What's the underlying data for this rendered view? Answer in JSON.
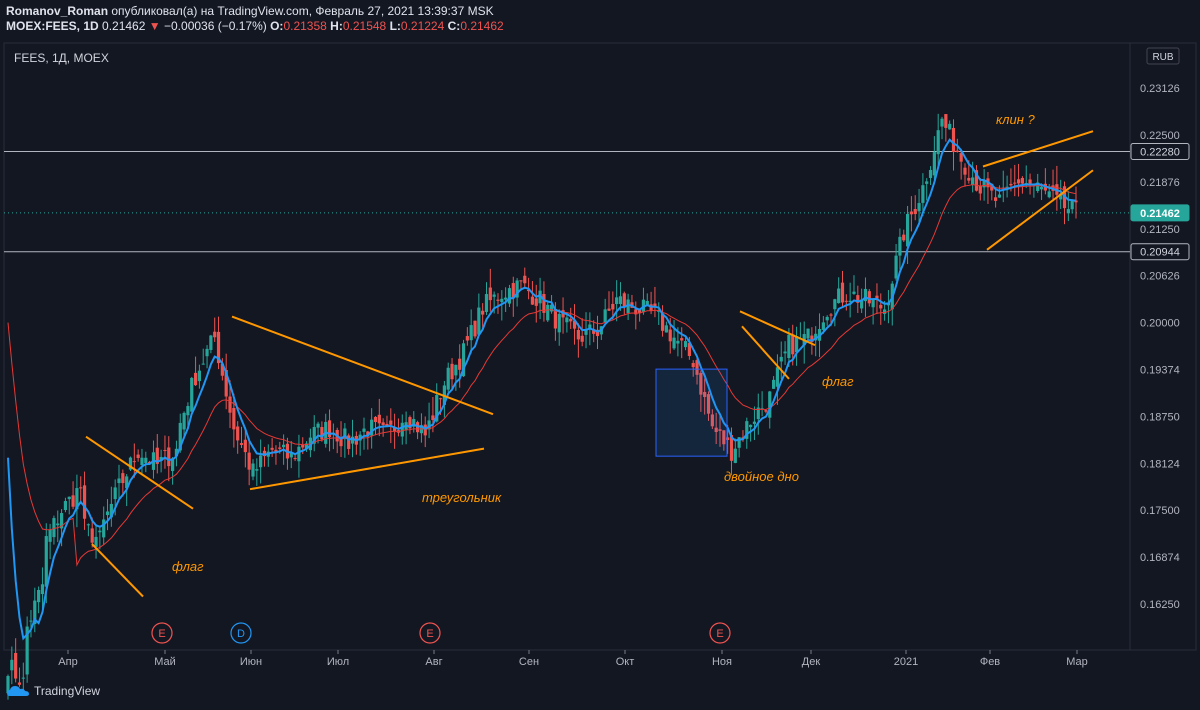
{
  "header": {
    "author": "Romanov_Roman",
    "published_text": "опубликовал(а) на TradingView.com, Февраль 27, 2021 13:39:37 MSK",
    "symbol": "MOEX:FEES, 1D",
    "last": "0.21462",
    "change": "−0.00036 (−0.17%)",
    "o_label": "O:",
    "o": "0.21358",
    "h_label": "H:",
    "h": "0.21548",
    "l_label": "L:",
    "l": "0.21224",
    "c_label": "C:",
    "c": "0.21462"
  },
  "chart_title": "FEES, 1Д, MOEX",
  "currency": "RUB",
  "footer_brand": "TradingView",
  "colors": {
    "background": "#131722",
    "up": "#26a69a",
    "down": "#ef5350",
    "ma_fast": "#2196f3",
    "ma_slow": "#e53935",
    "annotation": "#ff9800",
    "hline": "#b2b5be",
    "last_price": "#26a69a"
  },
  "chart_data": {
    "type": "candlestick",
    "y_ticks": [
      0.23126,
      0.225,
      0.21876,
      0.2125,
      0.20626,
      0.2,
      0.19374,
      0.1875,
      0.18124,
      0.175,
      0.16874,
      0.1625
    ],
    "ylim": [
      0.1575,
      0.2345
    ],
    "x_labels": [
      "Апр",
      "Май",
      "Июн",
      "Июл",
      "Авг",
      "Сен",
      "Окт",
      "Ноя",
      "Дек",
      "2021",
      "Фев",
      "Мар"
    ],
    "price_badges": [
      {
        "label": "0.22280",
        "value": 0.2228,
        "style": "hline"
      },
      {
        "label": "0.21462",
        "value": 0.21462,
        "style": "last"
      },
      {
        "label": "0.20944",
        "value": 0.20944,
        "style": "hline"
      }
    ],
    "horizontal_levels": [
      0.2228,
      0.20944
    ],
    "events": [
      {
        "label": "E",
        "color": "#ef5350"
      },
      {
        "label": "D",
        "color": "#2196f3"
      },
      {
        "label": "E",
        "color": "#ef5350"
      },
      {
        "label": "E",
        "color": "#ef5350"
      }
    ],
    "annotations": [
      {
        "text": "флаг"
      },
      {
        "text": "треугольник"
      },
      {
        "text": "двойное дно"
      },
      {
        "text": "флаг"
      },
      {
        "text": "клин ?"
      }
    ],
    "close_path": [
      [
        0.155,
        0.152
      ],
      [
        0.158,
        0.165
      ],
      [
        0.17,
        0.175
      ],
      [
        0.175,
        0.178
      ],
      [
        0.173,
        0.171
      ],
      [
        0.172,
        0.178
      ],
      [
        0.178,
        0.183
      ],
      [
        0.183,
        0.181
      ],
      [
        0.181,
        0.183
      ],
      [
        0.185,
        0.193
      ],
      [
        0.193,
        0.198
      ],
      [
        0.198,
        0.186
      ],
      [
        0.186,
        0.18
      ],
      [
        0.18,
        0.183
      ],
      [
        0.183,
        0.182
      ],
      [
        0.182,
        0.185
      ],
      [
        0.185,
        0.186
      ],
      [
        0.186,
        0.184
      ],
      [
        0.184,
        0.186
      ],
      [
        0.186,
        0.185
      ],
      [
        0.185,
        0.188
      ],
      [
        0.188,
        0.185
      ],
      [
        0.185,
        0.192
      ],
      [
        0.192,
        0.196
      ],
      [
        0.196,
        0.202
      ],
      [
        0.202,
        0.204
      ],
      [
        0.204,
        0.205
      ],
      [
        0.205,
        0.203
      ],
      [
        0.203,
        0.2
      ],
      [
        0.2,
        0.198
      ],
      [
        0.198,
        0.199
      ],
      [
        0.199,
        0.203
      ],
      [
        0.203,
        0.202
      ],
      [
        0.202,
        0.201
      ],
      [
        0.201,
        0.198
      ],
      [
        0.198,
        0.195
      ],
      [
        0.195,
        0.186
      ],
      [
        0.186,
        0.183
      ],
      [
        0.183,
        0.187
      ],
      [
        0.187,
        0.19
      ],
      [
        0.19,
        0.197
      ],
      [
        0.197,
        0.198
      ],
      [
        0.198,
        0.202
      ],
      [
        0.202,
        0.204
      ],
      [
        0.204,
        0.203
      ],
      [
        0.203,
        0.202
      ],
      [
        0.202,
        0.212
      ],
      [
        0.212,
        0.218
      ],
      [
        0.218,
        0.227
      ],
      [
        0.227,
        0.222
      ],
      [
        0.222,
        0.218
      ],
      [
        0.218,
        0.216
      ],
      [
        0.216,
        0.219
      ],
      [
        0.219,
        0.218
      ],
      [
        0.218,
        0.216
      ],
      [
        0.216,
        0.2146
      ]
    ]
  }
}
